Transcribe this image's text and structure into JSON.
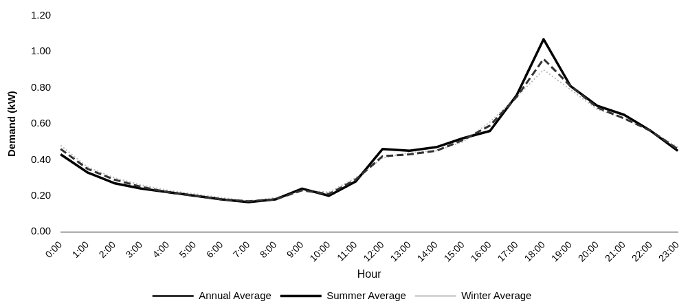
{
  "chart_data": {
    "type": "line",
    "xlabel": "Hour",
    "ylabel": "Demand (kW)",
    "categories": [
      "0:00",
      "1:00",
      "2:00",
      "3:00",
      "4:00",
      "5:00",
      "6:00",
      "7:00",
      "8:00",
      "9:00",
      "10:00",
      "11:00",
      "12:00",
      "13:00",
      "14:00",
      "15:00",
      "16:00",
      "17:00",
      "18:00",
      "19:00",
      "20:00",
      "21:00",
      "22:00",
      "23:00"
    ],
    "series": [
      {
        "name": "Annual Average",
        "color": "#333333",
        "line_style": "dashed",
        "values": [
          0.46,
          0.35,
          0.29,
          0.25,
          0.22,
          0.2,
          0.18,
          0.17,
          0.18,
          0.23,
          0.21,
          0.29,
          0.42,
          0.43,
          0.45,
          0.51,
          0.59,
          0.75,
          0.96,
          0.81,
          0.69,
          0.63,
          0.56,
          0.46
        ]
      },
      {
        "name": "Summer Average",
        "color": "#000000",
        "line_style": "solid",
        "values": [
          0.43,
          0.33,
          0.27,
          0.24,
          0.22,
          0.2,
          0.18,
          0.165,
          0.18,
          0.24,
          0.2,
          0.28,
          0.46,
          0.45,
          0.47,
          0.52,
          0.56,
          0.76,
          1.07,
          0.81,
          0.7,
          0.65,
          0.56,
          0.45
        ]
      },
      {
        "name": "Winter Average",
        "color": "#bbbbbb",
        "line_style": "dotted",
        "values": [
          0.48,
          0.36,
          0.3,
          0.26,
          0.23,
          0.21,
          0.19,
          0.17,
          0.19,
          0.23,
          0.22,
          0.3,
          0.41,
          0.44,
          0.45,
          0.5,
          0.61,
          0.75,
          0.9,
          0.79,
          0.68,
          0.63,
          0.56,
          0.47
        ]
      }
    ],
    "ylim": [
      0,
      1.2
    ],
    "yticks": [
      {
        "value": 0,
        "label": "0.00"
      },
      {
        "value": 0.2,
        "label": "0.20"
      },
      {
        "value": 0.4,
        "label": "0.40"
      },
      {
        "value": 0.6,
        "label": "0.60"
      },
      {
        "value": 0.8,
        "label": "0.80"
      },
      {
        "value": 1,
        "label": "1.00"
      },
      {
        "value": 1.2,
        "label": "1.20"
      }
    ],
    "grid": false,
    "legend": "bottom",
    "marker": "none"
  }
}
